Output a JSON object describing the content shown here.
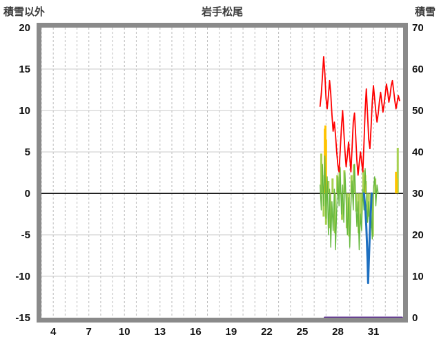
{
  "chart_data": {
    "type": "line",
    "title": "岩手松尾",
    "grid": {
      "vertical": "dashed-per-day",
      "horizontal": "solid",
      "zero_line": true
    },
    "left_axis": {
      "title": "積雪以外",
      "min": -15,
      "max": 20,
      "ticks": [
        20,
        15,
        10,
        5,
        0,
        -5,
        -10,
        -15
      ]
    },
    "right_axis": {
      "title": "積雪",
      "min": 0,
      "max": 70,
      "ticks": [
        70,
        60,
        50,
        40,
        30,
        20,
        10,
        0
      ]
    },
    "x_axis": {
      "label": "",
      "min": 3,
      "max": 33.5,
      "ticks": [
        4,
        7,
        10,
        13,
        16,
        19,
        22,
        25,
        28,
        31
      ]
    },
    "colors": {
      "frame": "#8a8a8a",
      "grid": "#c9c9c9",
      "zero": "#222222",
      "red": "#ff0000",
      "green": "#66b83e",
      "yellowgreen": "#a6d050",
      "yellow": "#ffc400",
      "blue": "#1d6fc0",
      "purple": "#5c2d91"
    },
    "series": [
      {
        "name": "yellowgreen-bars",
        "type": "bars",
        "axis": "left",
        "color": "#a6d050",
        "width": 3,
        "points": [
          [
            26.6,
            0,
            4.8
          ],
          [
            26.7,
            0,
            2.2
          ],
          [
            26.8,
            -2.8,
            0
          ],
          [
            26.9,
            0,
            3.2
          ],
          [
            27.0,
            -3.8,
            0
          ],
          [
            27.2,
            0,
            1.5
          ],
          [
            27.35,
            -4.2,
            0
          ],
          [
            27.55,
            0,
            1.8
          ],
          [
            27.75,
            -4.8,
            0
          ],
          [
            27.95,
            0,
            2.2
          ],
          [
            28.15,
            0,
            3.2
          ],
          [
            28.35,
            -3.2,
            0
          ],
          [
            28.55,
            0,
            2.8
          ],
          [
            28.75,
            -4.2,
            0
          ],
          [
            28.95,
            -5.2,
            0
          ],
          [
            29.15,
            0,
            2.2
          ],
          [
            29.35,
            0,
            3.5
          ],
          [
            29.55,
            -2.2,
            0
          ],
          [
            29.75,
            -4.8,
            0
          ],
          [
            29.95,
            -3.2,
            0
          ],
          [
            30.15,
            0,
            2.8
          ],
          [
            30.35,
            0,
            1.5
          ],
          [
            30.55,
            -2.8,
            0
          ],
          [
            30.75,
            -4.2,
            0
          ],
          [
            30.95,
            -5.2,
            0
          ],
          [
            31.15,
            0,
            1.8
          ],
          [
            33.05,
            0,
            5.5
          ]
        ]
      },
      {
        "name": "yellow-bars",
        "type": "bars",
        "axis": "left",
        "color": "#ffc400",
        "width": 3,
        "points": [
          [
            26.9,
            0,
            7.8
          ],
          [
            26.95,
            0,
            8.2
          ],
          [
            27.0,
            0,
            6.5
          ],
          [
            30.3,
            0,
            2.2
          ],
          [
            32.9,
            0,
            2.6
          ],
          [
            32.95,
            0,
            1.8
          ]
        ]
      },
      {
        "name": "green-spikes",
        "type": "line",
        "axis": "left",
        "color": "#66b83e",
        "width": 1.4,
        "points": [
          [
            26.5,
            1.0
          ],
          [
            26.6,
            -2.0
          ],
          [
            26.7,
            3.5
          ],
          [
            26.8,
            -1.5
          ],
          [
            26.9,
            4.5
          ],
          [
            27.0,
            -3.0
          ],
          [
            27.1,
            2.0
          ],
          [
            27.2,
            -5.0
          ],
          [
            27.3,
            0.5
          ],
          [
            27.4,
            -6.5
          ],
          [
            27.5,
            -1.0
          ],
          [
            27.6,
            -4.5
          ],
          [
            27.7,
            0.5
          ],
          [
            27.8,
            -6.8
          ],
          [
            27.9,
            -2.0
          ],
          [
            28.0,
            2.0
          ],
          [
            28.1,
            -1.5
          ],
          [
            28.2,
            3.0
          ],
          [
            28.3,
            -2.5
          ],
          [
            28.4,
            1.0
          ],
          [
            28.5,
            -3.5
          ],
          [
            28.6,
            2.5
          ],
          [
            28.7,
            -1.0
          ],
          [
            28.8,
            -5.0
          ],
          [
            28.9,
            -0.5
          ],
          [
            29.0,
            -6.5
          ],
          [
            29.1,
            -1.5
          ],
          [
            29.2,
            1.5
          ],
          [
            29.3,
            -2.0
          ],
          [
            29.4,
            3.5
          ],
          [
            29.5,
            -0.5
          ],
          [
            29.6,
            -4.0
          ],
          [
            29.7,
            -1.0
          ],
          [
            29.8,
            -6.8
          ],
          [
            29.9,
            -2.5
          ],
          [
            30.0,
            -4.5
          ],
          [
            30.1,
            0.5
          ],
          [
            30.2,
            -2.0
          ],
          [
            30.3,
            3.0
          ],
          [
            30.4,
            -0.5
          ],
          [
            30.5,
            -3.5
          ],
          [
            30.6,
            -1.0
          ],
          [
            30.7,
            -4.5
          ],
          [
            30.8,
            -2.0
          ],
          [
            30.9,
            -5.5
          ],
          [
            31.0,
            0.5
          ],
          [
            31.1,
            2.0
          ],
          [
            31.2,
            -1.5
          ],
          [
            31.3,
            1.0
          ],
          [
            31.4,
            0.0
          ]
        ]
      },
      {
        "name": "blue-line",
        "type": "line",
        "axis": "left",
        "color": "#1d6fc0",
        "width": 3,
        "points": [
          [
            30.2,
            0
          ],
          [
            30.3,
            -1.5
          ],
          [
            30.4,
            -4.0
          ],
          [
            30.5,
            -8.0
          ],
          [
            30.55,
            -10.8
          ],
          [
            30.6,
            -8.5
          ],
          [
            30.7,
            -4.5
          ],
          [
            30.8,
            -1.5
          ],
          [
            30.85,
            0
          ]
        ]
      },
      {
        "name": "red-line",
        "type": "line",
        "axis": "left",
        "color": "#ff0000",
        "width": 1.8,
        "points": [
          [
            26.5,
            10.5
          ],
          [
            26.6,
            12.0
          ],
          [
            26.7,
            14.2
          ],
          [
            26.8,
            16.5
          ],
          [
            26.9,
            14.5
          ],
          [
            27.0,
            11.5
          ],
          [
            27.1,
            10.2
          ],
          [
            27.2,
            11.8
          ],
          [
            27.3,
            13.6
          ],
          [
            27.4,
            12.0
          ],
          [
            27.5,
            9.5
          ],
          [
            27.6,
            7.5
          ],
          [
            27.7,
            8.6
          ],
          [
            27.8,
            7.0
          ],
          [
            27.9,
            5.0
          ],
          [
            28.0,
            3.4
          ],
          [
            28.1,
            2.6
          ],
          [
            28.2,
            5.2
          ],
          [
            28.3,
            8.0
          ],
          [
            28.4,
            10.0
          ],
          [
            28.5,
            7.5
          ],
          [
            28.6,
            5.0
          ],
          [
            28.7,
            3.2
          ],
          [
            28.8,
            4.6
          ],
          [
            28.9,
            6.2
          ],
          [
            29.0,
            4.4
          ],
          [
            29.1,
            2.6
          ],
          [
            29.2,
            5.5
          ],
          [
            29.3,
            8.6
          ],
          [
            29.4,
            9.7
          ],
          [
            29.5,
            7.0
          ],
          [
            29.6,
            4.0
          ],
          [
            29.7,
            2.2
          ],
          [
            29.8,
            3.6
          ],
          [
            29.9,
            5.0
          ],
          [
            30.0,
            3.8
          ],
          [
            30.1,
            2.6
          ],
          [
            30.2,
            6.0
          ],
          [
            30.3,
            10.0
          ],
          [
            30.4,
            12.6
          ],
          [
            30.5,
            9.5
          ],
          [
            30.6,
            6.5
          ],
          [
            30.7,
            5.4
          ],
          [
            30.8,
            8.0
          ],
          [
            30.9,
            11.0
          ],
          [
            31.0,
            13.0
          ],
          [
            31.1,
            11.4
          ],
          [
            31.2,
            9.8
          ],
          [
            31.3,
            8.6
          ],
          [
            31.4,
            9.6
          ],
          [
            31.5,
            11.0
          ],
          [
            31.6,
            12.2
          ],
          [
            31.7,
            11.0
          ],
          [
            31.8,
            9.8
          ],
          [
            31.9,
            10.8
          ],
          [
            32.0,
            12.0
          ],
          [
            32.1,
            13.2
          ],
          [
            32.2,
            12.2
          ],
          [
            32.3,
            11.0
          ],
          [
            32.4,
            11.8
          ],
          [
            32.5,
            13.0
          ],
          [
            32.6,
            13.6
          ],
          [
            32.7,
            12.4
          ],
          [
            32.8,
            11.2
          ],
          [
            32.9,
            10.2
          ],
          [
            33.0,
            11.0
          ],
          [
            33.1,
            11.8
          ],
          [
            33.2,
            11.2
          ]
        ]
      },
      {
        "name": "snow-depth-right-axis",
        "type": "line",
        "axis": "right",
        "color": "#5c2d91",
        "width": 3,
        "points": [
          [
            26.9,
            0
          ],
          [
            33.4,
            0
          ]
        ]
      }
    ]
  }
}
